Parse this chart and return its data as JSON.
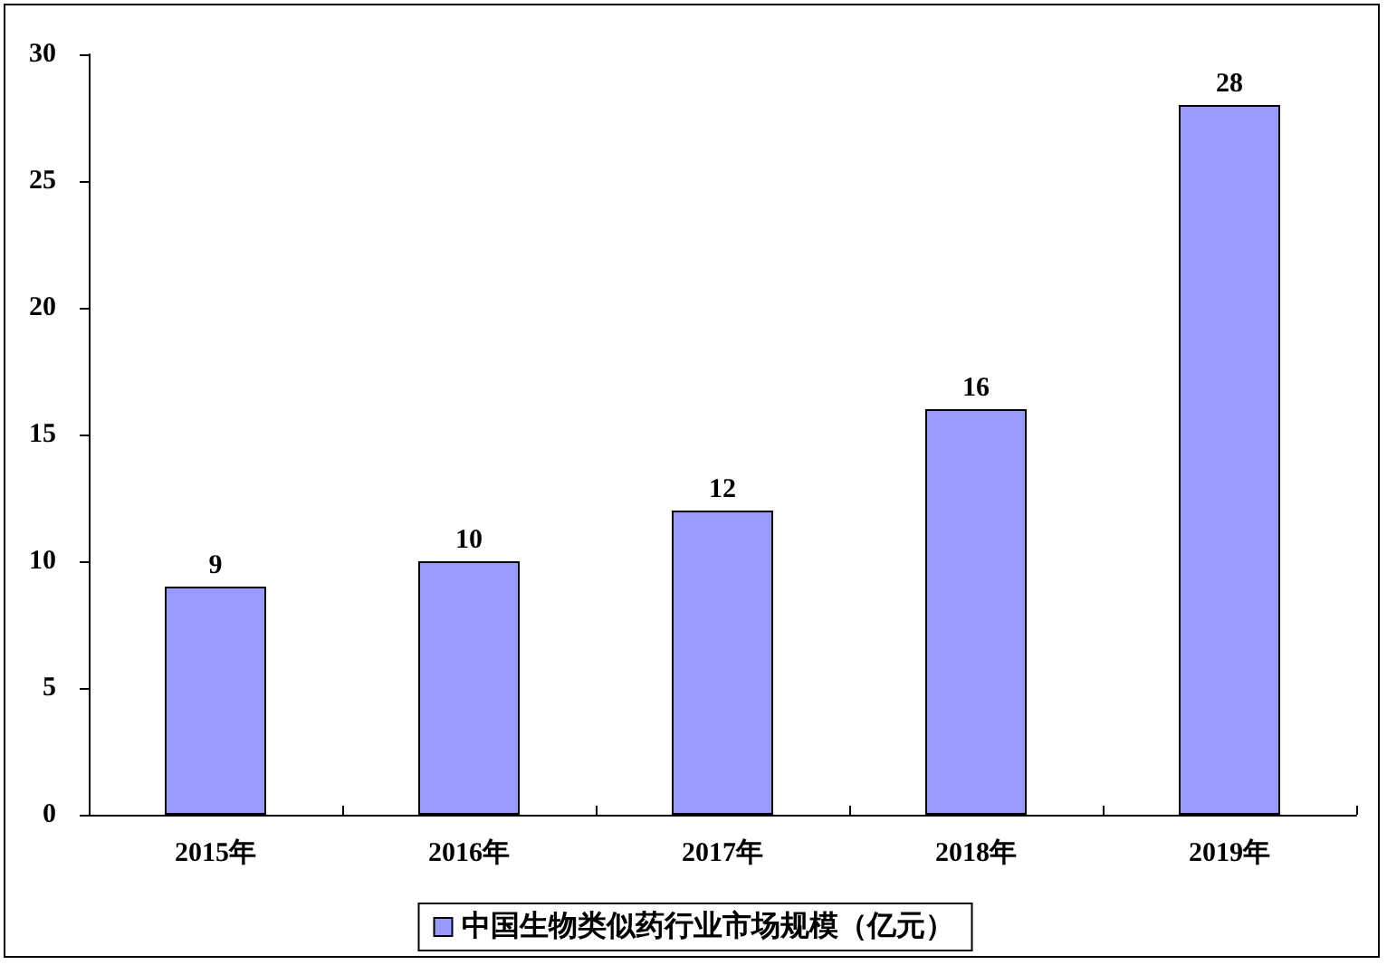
{
  "chart_data": {
    "type": "bar",
    "categories": [
      "2015年",
      "2016年",
      "2017年",
      "2018年",
      "2019年"
    ],
    "series": [
      {
        "name": "中国生物类似药行业市场规模（亿元）",
        "color": "#9999ff",
        "values": [
          9,
          10,
          12,
          16,
          28
        ]
      }
    ],
    "ylim": [
      0,
      30
    ],
    "yticks": [
      0,
      5,
      10,
      15,
      20,
      25,
      30
    ],
    "grid": false,
    "legend": "bottom",
    "data_labels": true
  }
}
